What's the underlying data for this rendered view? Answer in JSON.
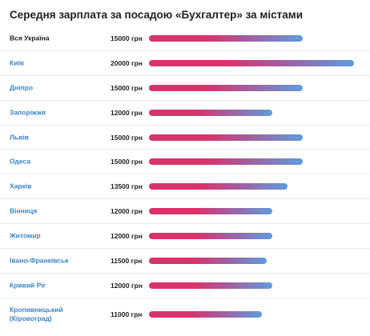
{
  "title": "Середня зарплата за посадою «Бухгалтер» за містами",
  "chart_data": {
    "type": "bar",
    "orientation": "horizontal",
    "title": "Середня зарплата за посадою «Бухгалтер» за містами",
    "unit": "грн",
    "xlim": [
      0,
      20000
    ],
    "categories": [
      "Вся Україна",
      "Київ",
      "Дніпро",
      "Запоріжжя",
      "Львів",
      "Одеса",
      "Харків",
      "Вінниця",
      "Житомир",
      "Івано-Франківськ",
      "Кривий Ріг",
      "Кропивницький (Кіровоград)"
    ],
    "values": [
      15000,
      20000,
      15000,
      12000,
      15000,
      15000,
      13500,
      12000,
      12000,
      11500,
      12000,
      11000
    ],
    "value_labels": [
      "15000 грн",
      "20000 грн",
      "15000 грн",
      "12000 грн",
      "15000 грн",
      "15000 грн",
      "13500 грн",
      "12000 грн",
      "12000 грн",
      "11500 грн",
      "12000 грн",
      "11000 грн"
    ],
    "category_lines": [
      [
        "Вся Україна"
      ],
      [
        "Київ"
      ],
      [
        "Дніпро"
      ],
      [
        "Запоріжжя"
      ],
      [
        "Львів"
      ],
      [
        "Одеса"
      ],
      [
        "Харків"
      ],
      [
        "Вінниця"
      ],
      [
        "Житомир"
      ],
      [
        "Івано-Франківськ"
      ],
      [
        "Кривий Ріг"
      ],
      [
        "Кропивницький",
        "(Кіровоград)"
      ]
    ],
    "linked": [
      false,
      true,
      true,
      true,
      true,
      true,
      true,
      true,
      true,
      true,
      true,
      true
    ]
  },
  "colors": {
    "bar_start": "#d8336a",
    "bar_end": "#5f9cdc",
    "link": "#3d84c6",
    "text": "#222222",
    "divider": "#e9e9e9"
  }
}
